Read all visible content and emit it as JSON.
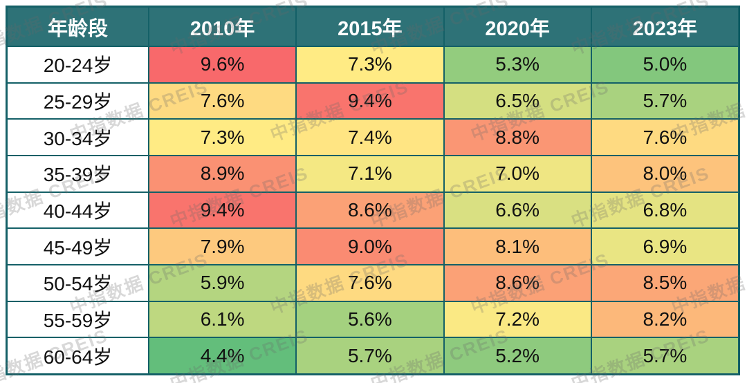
{
  "watermark": {
    "text": "中指数据 CREIS"
  },
  "table_style": {
    "header_bg": "#2E7277",
    "header_text_color": "#FFFFFF",
    "border_color": "#146067",
    "row_label_bg": "#FFFFFF",
    "cell_text_color": "#111111"
  },
  "chart_data": {
    "type": "heatmap",
    "unit": "%",
    "columns": [
      "年龄段",
      "2010年",
      "2015年",
      "2020年",
      "2023年"
    ],
    "rows": [
      "20-24岁",
      "25-29岁",
      "30-34岁",
      "35-39岁",
      "40-44岁",
      "45-49岁",
      "50-54岁",
      "55-59岁",
      "60-64岁"
    ],
    "values": [
      [
        9.6,
        7.3,
        5.3,
        5.0
      ],
      [
        7.6,
        9.4,
        6.5,
        5.7
      ],
      [
        7.3,
        7.4,
        8.8,
        7.6
      ],
      [
        8.9,
        7.1,
        7.0,
        8.0
      ],
      [
        9.4,
        8.6,
        6.6,
        6.8
      ],
      [
        7.9,
        9.0,
        8.1,
        6.9
      ],
      [
        5.9,
        7.6,
        8.6,
        8.5
      ],
      [
        6.1,
        5.6,
        7.2,
        8.2
      ],
      [
        4.4,
        5.7,
        5.2,
        5.7
      ]
    ],
    "color_scale": {
      "min_value": 4.4,
      "min_color": "#63BE7B",
      "mid_value": 7.3,
      "mid_color": "#FFEB84",
      "max_value": 9.6,
      "max_color": "#F8696B"
    },
    "cell_colors": [
      [
        "#F8696B",
        "#FFEB84",
        "#93CC7E",
        "#83C77D"
      ],
      [
        "#FEDA81",
        "#F9746D",
        "#D4DF81",
        "#A9D27F"
      ],
      [
        "#FFEB84",
        "#FFE583",
        "#FA9674",
        "#FEDA81"
      ],
      [
        "#FA9173",
        "#F4E883",
        "#EFE683",
        "#FDC37C"
      ],
      [
        "#F9746D",
        "#FBA176",
        "#D9E082",
        "#E4E382"
      ],
      [
        "#FDC97E",
        "#FA8B72",
        "#FDBE7B",
        "#E9E583"
      ],
      [
        "#B4D580",
        "#FEDA81",
        "#FBA176",
        "#FBA777"
      ],
      [
        "#BED880",
        "#A4D17F",
        "#FAE984",
        "#FCB87A"
      ],
      [
        "#63BE7B",
        "#A9D27F",
        "#8ECA7E",
        "#A9D27F"
      ]
    ]
  }
}
